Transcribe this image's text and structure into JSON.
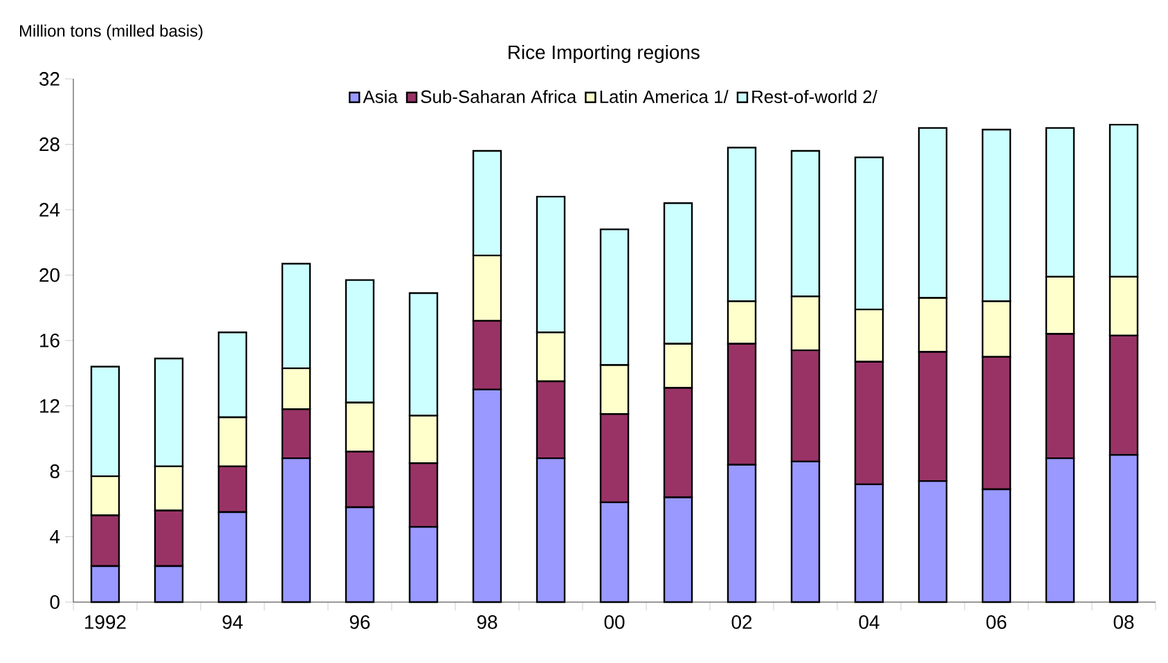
{
  "chart_data": {
    "type": "bar",
    "stacked": true,
    "title": "Rice Importing regions",
    "ylabel": "Million tons (milled basis)",
    "categories": [
      "1992",
      null,
      "94",
      null,
      "96",
      null,
      "98",
      null,
      "00",
      null,
      "02",
      null,
      "04",
      null,
      "06",
      null,
      "08"
    ],
    "series": [
      {
        "name": "Asia",
        "color": "#9999ff",
        "values": [
          2.2,
          2.2,
          5.5,
          8.8,
          5.8,
          4.6,
          13.0,
          8.8,
          6.1,
          6.4,
          8.4,
          8.6,
          7.2,
          7.4,
          6.9,
          8.8,
          9.0
        ]
      },
      {
        "name": "Sub-Saharan Africa",
        "color": "#993366",
        "values": [
          3.1,
          3.4,
          2.8,
          3.0,
          3.4,
          3.9,
          4.2,
          4.7,
          5.4,
          6.7,
          7.4,
          6.8,
          7.5,
          7.9,
          8.1,
          7.6,
          7.3
        ]
      },
      {
        "name": "Latin America 1/",
        "color": "#ffffcc",
        "values": [
          2.4,
          2.7,
          3.0,
          2.5,
          3.0,
          2.9,
          4.0,
          3.0,
          3.0,
          2.7,
          2.6,
          3.3,
          3.2,
          3.3,
          3.4,
          3.5,
          3.6
        ]
      },
      {
        "name": "Rest-of-world 2/",
        "color": "#ccffff",
        "values": [
          6.7,
          6.6,
          5.2,
          6.4,
          7.5,
          7.5,
          6.4,
          8.3,
          8.3,
          8.6,
          9.4,
          8.9,
          9.3,
          10.4,
          10.5,
          9.1,
          9.3
        ]
      }
    ],
    "ylim": [
      0,
      32
    ],
    "yticks": [
      0,
      4,
      8,
      12,
      16,
      20,
      24,
      28,
      32
    ],
    "grid": false,
    "legend": "top"
  }
}
